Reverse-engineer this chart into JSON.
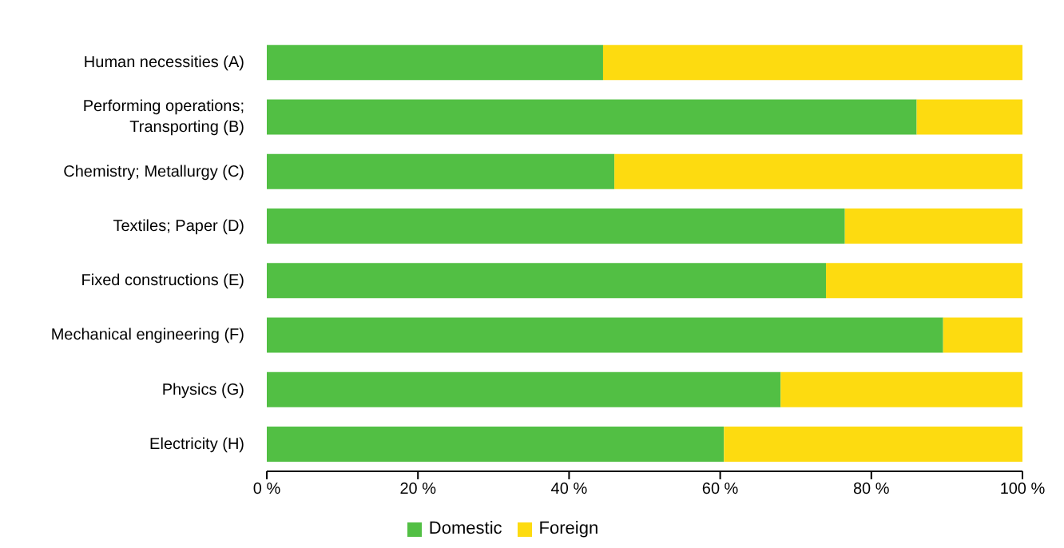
{
  "chart_data": {
    "type": "bar",
    "orientation": "horizontal",
    "stacked": true,
    "categories": [
      "Human necessities (A)",
      "Performing operations; Transporting (B)",
      "Chemistry; Metallurgy (C)",
      "Textiles; Paper (D)",
      "Fixed constructions (E)",
      "Mechanical engineering (F)",
      "Physics (G)",
      "Electricity (H)"
    ],
    "series": [
      {
        "name": "Domestic",
        "color": "#52bf44",
        "values": [
          44.5,
          86,
          46,
          76.5,
          74,
          89.5,
          68,
          60.5
        ]
      },
      {
        "name": "Foreign",
        "color": "#fddb10",
        "values": [
          55.5,
          14,
          54,
          23.5,
          26,
          10.5,
          32,
          39.5
        ]
      }
    ],
    "xlim": [
      0,
      100
    ],
    "xticks": [
      {
        "value": 0,
        "label": "0 %"
      },
      {
        "value": 20,
        "label": "20 %"
      },
      {
        "value": 40,
        "label": "40 %"
      },
      {
        "value": 60,
        "label": "60 %"
      },
      {
        "value": 80,
        "label": "80 %"
      },
      {
        "value": 100,
        "label": "100 %"
      }
    ],
    "grid": false,
    "legend": "bottom"
  }
}
